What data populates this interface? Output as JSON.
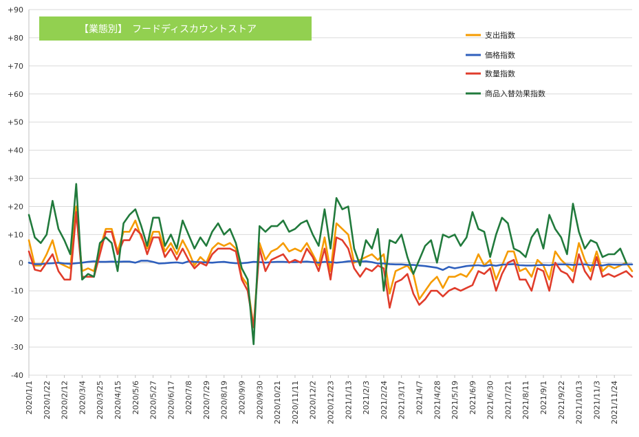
{
  "chart_data": {
    "type": "line",
    "title": "【業態別】　フードディスカウントストア",
    "xlabel": "",
    "ylabel": "",
    "ylim": [
      -40,
      90
    ],
    "y_ticks": [
      "+90",
      "+80",
      "+70",
      "+60",
      "+50",
      "+40",
      "+30",
      "+20",
      "+10",
      "0",
      "-10",
      "-20",
      "-30",
      "-40"
    ],
    "grid": "horizontal",
    "legend_position": "top-right",
    "x_tick_labels": [
      "2020/1/1",
      "2020/1/22",
      "2020/2/12",
      "2020/3/4",
      "2020/3/25",
      "2020/4/15",
      "2020/5/6",
      "2020/5/27",
      "2020/6/17",
      "2020/7/8",
      "2020/7/29",
      "2020/8/19",
      "2020/9/9",
      "2020/9/30",
      "2020/10/21",
      "2020/11/11",
      "2020/12/2",
      "2020/12/23",
      "2021/1/13",
      "2021/2/3",
      "2021/2/24",
      "2021/3/17",
      "2021/4/7",
      "2021/4/28",
      "2021/5/19",
      "2021/6/9",
      "2021/6/30",
      "2021/7/21",
      "2021/8/11",
      "2021/9/1",
      "2021/9/22",
      "2021/10/13",
      "2021/11/3",
      "2021/11/24"
    ],
    "x_tick_every": 3,
    "colors": {
      "title_box": "#92d050",
      "grid": "#d9d9d9",
      "axis": "#bfbfbf"
    },
    "series": [
      {
        "name": "支出指数",
        "color": "#f59b00",
        "values": [
          8,
          -1,
          -1,
          3,
          8,
          0,
          -1,
          -2,
          20,
          -3,
          -2,
          -3,
          5,
          12,
          12,
          4,
          11,
          11,
          15,
          9,
          5,
          11,
          11,
          4,
          7,
          3,
          8,
          4,
          -1,
          2,
          0,
          5,
          7,
          6,
          7,
          5,
          -5,
          -8,
          -23,
          7,
          1,
          4,
          5,
          7,
          4,
          5,
          4,
          7,
          3,
          -1,
          9,
          -3,
          14,
          12,
          10,
          0,
          1,
          2,
          3,
          1,
          3,
          -11,
          -3,
          -2,
          -1,
          -4,
          -13,
          -10,
          -7,
          -5,
          -9,
          -5,
          -5,
          -4,
          -5,
          -2,
          3,
          -1,
          1,
          -6,
          -1,
          4,
          4,
          -3,
          -2,
          -5,
          1,
          -1,
          -6,
          4,
          1,
          -1,
          -3,
          7,
          1,
          -3,
          4,
          -3,
          -1,
          -2,
          -1,
          0,
          -3
        ],
        "legend_label_bind": "legend.s0"
      },
      {
        "name": "価格指数",
        "color": "#2e5fbd",
        "values": [
          0,
          -0.5,
          -0.5,
          -0.3,
          -0.2,
          0,
          -0.3,
          -0.4,
          -0.2,
          0,
          0.3,
          0.5,
          0.3,
          0.3,
          0.4,
          0.3,
          0.4,
          0.4,
          0,
          0.7,
          0.7,
          0.3,
          -0.3,
          -0.2,
          0,
          0.1,
          -0.2,
          0.5,
          0.3,
          0.2,
          0.1,
          0,
          0.2,
          0.3,
          0,
          -0.2,
          -0.2,
          0,
          0.3,
          0.2,
          0,
          0.2,
          0.3,
          0.3,
          0.2,
          0.2,
          0.3,
          0.4,
          0.2,
          0,
          0.3,
          0.2,
          0,
          0.2,
          0.5,
          0.6,
          0.4,
          0.5,
          0.2,
          -0.3,
          -0.3,
          -0.5,
          -0.6,
          -0.6,
          -0.8,
          -0.8,
          -1,
          -1.2,
          -1.5,
          -1.8,
          -2.6,
          -1.5,
          -2,
          -1.6,
          -1.2,
          -1,
          -0.9,
          -1.2,
          -0.8,
          -1.1,
          -0.7,
          -0.6,
          -0.5,
          -0.9,
          -1,
          -1,
          -0.9,
          -0.8,
          -0.9,
          -0.6,
          -0.6,
          -0.6,
          -0.8,
          -0.6,
          -0.6,
          -0.9,
          -0.8,
          -1,
          -0.6,
          -0.7,
          -0.7,
          -0.6,
          -0.6
        ],
        "legend_label_bind": "legend.s1"
      },
      {
        "name": "数量指数",
        "color": "#e03c2b",
        "values": [
          4,
          -2.5,
          -3,
          0,
          3,
          -3,
          -6,
          -6,
          18,
          -5,
          -5,
          -5,
          3,
          11,
          11,
          3,
          8,
          8,
          12,
          10,
          3,
          9,
          9,
          2,
          5,
          1,
          5,
          1,
          -2,
          0,
          -1,
          3,
          5,
          5,
          5,
          4,
          -6,
          -10,
          -23,
          5,
          -3,
          1,
          2,
          3,
          0,
          1,
          0,
          5,
          2,
          -3,
          5,
          -6,
          9,
          8,
          5,
          -2,
          -5,
          -2,
          -3,
          -1,
          -2,
          -16,
          -7,
          -6,
          -4,
          -11,
          -15,
          -13,
          -10,
          -10,
          -12,
          -10,
          -9,
          -10,
          -9,
          -8,
          -3,
          -4,
          -2,
          -10,
          -4,
          0,
          1,
          -6,
          -6,
          -10,
          -2,
          -3,
          -10,
          0,
          -3,
          -4,
          -7,
          3,
          -3,
          -6,
          2,
          -5,
          -4,
          -5,
          -4,
          -3,
          -5
        ],
        "legend_label_bind": "legend.s2"
      },
      {
        "name": "商品入替効果指数",
        "color": "#217a3c",
        "values": [
          17,
          9,
          7,
          10,
          22,
          12,
          8,
          3,
          28,
          -6,
          -4,
          -5,
          7,
          9,
          7,
          -3,
          14,
          17,
          19,
          13,
          6,
          16,
          16,
          6,
          10,
          5,
          15,
          10,
          5,
          9,
          6,
          11,
          14,
          10,
          12,
          7,
          -2,
          -6,
          -29,
          13,
          11,
          13,
          13,
          15,
          11,
          12,
          14,
          15,
          10,
          6,
          19,
          5,
          23,
          19,
          20,
          5,
          -1,
          8,
          5,
          12,
          -10,
          8,
          7,
          10,
          2,
          -4,
          1,
          6,
          8,
          0,
          10,
          9,
          10,
          6,
          9,
          18,
          12,
          11,
          2,
          10,
          16,
          14,
          5,
          4,
          2,
          9,
          12,
          5,
          17,
          12,
          9,
          3,
          21,
          11,
          5,
          8,
          7,
          2,
          3,
          3,
          5,
          0
        ],
        "legend_label_bind": "legend.s3"
      }
    ]
  },
  "legend": {
    "s0": "支出指数",
    "s1": "価格指数",
    "s2": "数量指数",
    "s3": "商品入替効果指数"
  },
  "title_text": "【業態別】　フードディスカウントストア"
}
